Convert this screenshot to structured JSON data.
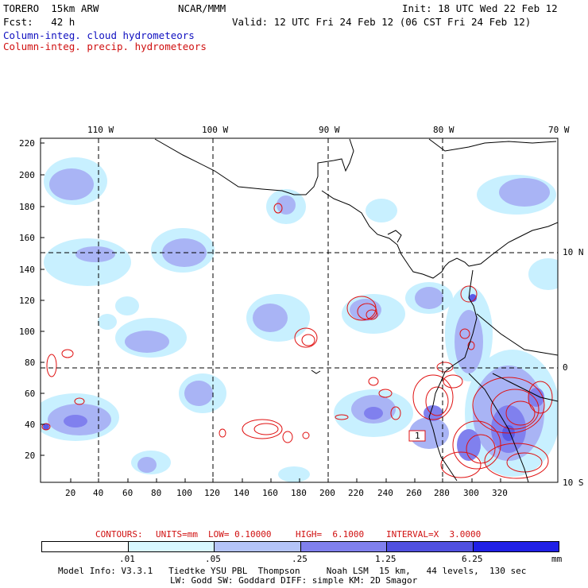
{
  "header": {
    "model": "TORERO  15km ARW",
    "org": "NCAR/MMM",
    "init": "Init: 18 UTC Wed 22 Feb 12",
    "fcst": "Fcst:   42 h",
    "valid": "Valid: 12 UTC Fri 24 Feb 12 (06 CST Fri 24 Feb 12)",
    "field1": "Column-integ. cloud hydrometeors",
    "field2": "Column-integ. precip. hydrometeors"
  },
  "map": {
    "lon_labels_top": [
      "110 W",
      "100 W",
      "90 W",
      "80 W",
      "70 W"
    ],
    "lat_labels_right": [
      "10 N",
      "0",
      "10 S"
    ],
    "y_ticks": [
      "220",
      "200",
      "180",
      "160",
      "140",
      "120",
      "100",
      "80",
      "60",
      "40",
      "20"
    ],
    "x_ticks": [
      "20",
      "40",
      "60",
      "80",
      "100",
      "120",
      "140",
      "160",
      "180",
      "200",
      "220",
      "240",
      "260",
      "280",
      "300",
      "320"
    ],
    "contour_label": "1",
    "colors": {
      "cloud_light": "#c8f0ff",
      "cloud_mid": "#a9b4f5",
      "cloud_dark": "#8080ee",
      "cloud_deep": "#5a5ae6",
      "precip": "#e01010",
      "coast": "#000000"
    }
  },
  "contours_info": {
    "label": "CONTOURS:",
    "units": "UNITS=mm",
    "low": "LOW= 0.10000",
    "high": "HIGH=  6.1000",
    "interval": "INTERVAL=X  3.0000"
  },
  "colorbar": {
    "labels": [
      ".01",
      ".05",
      ".25",
      "1.25",
      "6.25"
    ],
    "unit": "mm",
    "colors": [
      "#ffffff",
      "#d8f7ff",
      "#b4c4f8",
      "#8080ee",
      "#5050e0",
      "#2020e6"
    ]
  },
  "footer": {
    "line1": "Model Info: V3.3.1   Tiedtke YSU PBL  Thompson     Noah LSM  15 km,   44 levels,  130 sec",
    "line2": "LW: Godd SW: Goddard DIFF: simple KM: 2D Smagor"
  }
}
